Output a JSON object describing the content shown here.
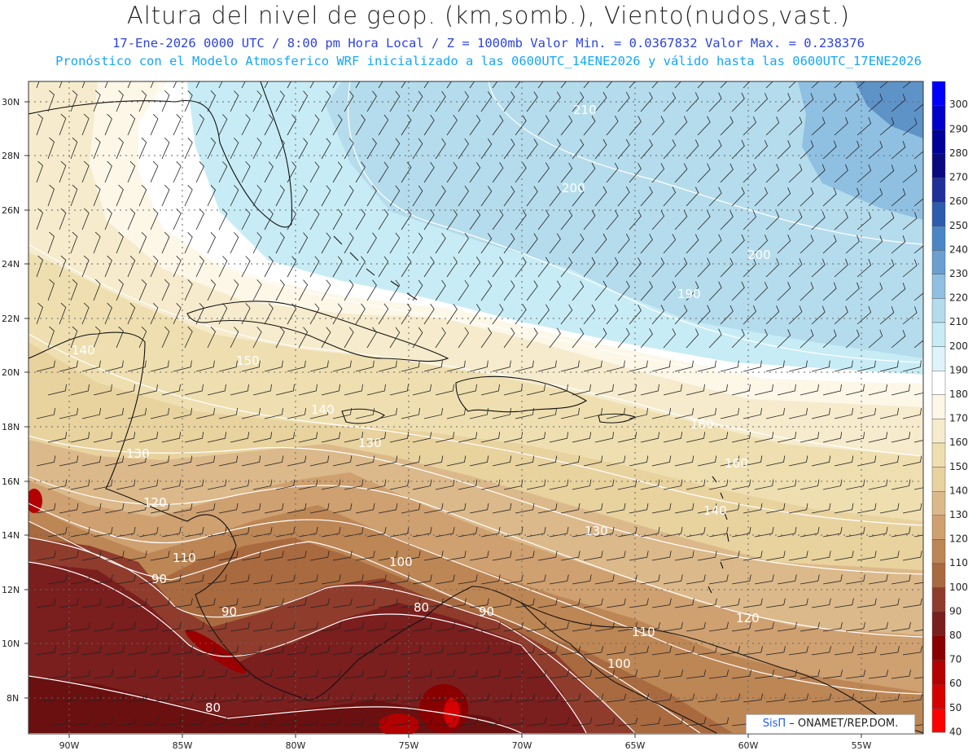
{
  "title": {
    "main": "Altura del nivel de geop. (km,somb.), Viento(nudos,vast.)",
    "subtitle1": "17-Ene-2026  0000 UTC / 8:00 pm Hora Local / Z = 1000mb  Valor Min. = 0.0367832  Valor Max. = 0.238376",
    "subtitle2": "Pronóstico con el Modelo Atmosferico WRF inicializado a las 0600UTC_14ENE2026 y válido hasta las  0600UTC_17ENE2026"
  },
  "colorbar": {
    "levels": [
      "300",
      "290",
      "280",
      "270",
      "260",
      "250",
      "240",
      "230",
      "220",
      "210",
      "200",
      "190",
      "180",
      "170",
      "160",
      "150",
      "140",
      "130",
      "120",
      "110",
      "100",
      "90",
      "80",
      "70",
      "60",
      "50",
      "40"
    ],
    "colors": [
      "#0000ff",
      "#0000cc",
      "#000099",
      "#0a0a80",
      "#1f2f9a",
      "#2d5bb0",
      "#4a86c5",
      "#6a9fd0",
      "#8fc0e2",
      "#b5dcec",
      "#c8ecf5",
      "#dff4fa",
      "#ffffff",
      "#fdf7e8",
      "#f6ebcc",
      "#efdfb0",
      "#e8d29e",
      "#dcb98a",
      "#cfa070",
      "#bd8655",
      "#a96a40",
      "#8f3c2c",
      "#7a1e1e",
      "#8a0000",
      "#b30000",
      "#d60000",
      "#ff0000"
    ]
  },
  "axes": {
    "lat_labels": [
      "30N",
      "28N",
      "26N",
      "24N",
      "22N",
      "20N",
      "18N",
      "16N",
      "14N",
      "12N",
      "10N",
      "8N"
    ],
    "lon_labels": [
      "90W",
      "85W",
      "80W",
      "75W",
      "70W",
      "65W",
      "60W",
      "55W"
    ]
  },
  "contour_labels": [
    "210",
    "200",
    "200",
    "190",
    "140",
    "150",
    "140",
    "130",
    "130",
    "120",
    "110",
    "130",
    "100",
    "90",
    "90",
    "80",
    "90",
    "120",
    "110",
    "100",
    "80",
    "160",
    "160",
    "140"
  ],
  "logo": {
    "part1": "SisΠ",
    "part2": " – ONAMET/REP.DOM."
  }
}
